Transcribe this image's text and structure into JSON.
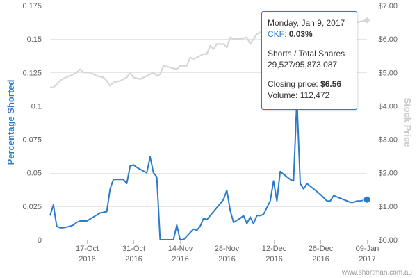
{
  "chart_data": {
    "type": "line",
    "x_axis": {
      "ticks": [
        {
          "date": "2016-10-17",
          "line1": "17-Oct",
          "line2": "2016"
        },
        {
          "date": "2016-10-31",
          "line1": "31-Oct",
          "line2": "2016"
        },
        {
          "date": "2016-11-14",
          "line1": "14-Nov",
          "line2": "2016"
        },
        {
          "date": "2016-11-28",
          "line1": "28-Nov",
          "line2": "2016"
        },
        {
          "date": "2016-12-12",
          "line1": "12-Dec",
          "line2": "2016"
        },
        {
          "date": "2016-12-26",
          "line1": "26-Dec",
          "line2": "2016"
        },
        {
          "date": "2017-01-09",
          "line1": "09-Jan",
          "line2": "2017"
        }
      ],
      "range": [
        "2016-10-06",
        "2017-01-09"
      ]
    },
    "y_axis_left": {
      "title": "Percentage Shorted",
      "range": [
        0,
        0.175
      ],
      "ticks": [
        {
          "value": 0,
          "label": "0"
        },
        {
          "value": 0.025,
          "label": "0.025"
        },
        {
          "value": 0.05,
          "label": "0.05"
        },
        {
          "value": 0.075,
          "label": "0.075"
        },
        {
          "value": 0.1,
          "label": "0.1"
        },
        {
          "value": 0.125,
          "label": "0.125"
        },
        {
          "value": 0.15,
          "label": "0.15"
        },
        {
          "value": 0.175,
          "label": "0.175"
        }
      ]
    },
    "y_axis_right": {
      "title": "Stock Price",
      "range": [
        0,
        7
      ],
      "ticks": [
        {
          "value": 0,
          "label": "$0.00"
        },
        {
          "value": 1,
          "label": "$1.00"
        },
        {
          "value": 2,
          "label": "$2.00"
        },
        {
          "value": 3,
          "label": "$3.00"
        },
        {
          "value": 4,
          "label": "$4.00"
        },
        {
          "value": 5,
          "label": "$5.00"
        },
        {
          "value": 6,
          "label": "$6.00"
        },
        {
          "value": 7,
          "label": "$7.00"
        }
      ]
    },
    "grid": true,
    "series": [
      {
        "axis": "left",
        "color": "#2b7bcb",
        "points": [
          [
            "2016-10-06",
            0.018
          ],
          [
            "2016-10-07",
            0.026
          ],
          [
            "2016-10-08",
            0.01
          ],
          [
            "2016-10-09",
            0.009
          ],
          [
            "2016-10-10",
            0.009
          ],
          [
            "2016-10-11",
            0.0095
          ],
          [
            "2016-10-12",
            0.01
          ],
          [
            "2016-10-13",
            0.011
          ],
          [
            "2016-10-14",
            0.013
          ],
          [
            "2016-10-15",
            0.014
          ],
          [
            "2016-10-16",
            0.014
          ],
          [
            "2016-10-17",
            0.014
          ],
          [
            "2016-10-19",
            0.017
          ],
          [
            "2016-10-21",
            0.02
          ],
          [
            "2016-10-23",
            0.021
          ],
          [
            "2016-10-24",
            0.038
          ],
          [
            "2016-10-25",
            0.045
          ],
          [
            "2016-10-28",
            0.045
          ],
          [
            "2016-10-29",
            0.042
          ],
          [
            "2016-10-30",
            0.055
          ],
          [
            "2016-10-31",
            0.056
          ],
          [
            "2016-11-01",
            0.054
          ],
          [
            "2016-11-04",
            0.05
          ],
          [
            "2016-11-05",
            0.062
          ],
          [
            "2016-11-06",
            0.05
          ],
          [
            "2016-11-07",
            0.047
          ],
          [
            "2016-11-08",
            0.0
          ],
          [
            "2016-11-10",
            0.0
          ],
          [
            "2016-11-12",
            0.0
          ],
          [
            "2016-11-13",
            0.011
          ],
          [
            "2016-11-14",
            0.0
          ],
          [
            "2016-11-15",
            0.0
          ],
          [
            "2016-11-18",
            0.008
          ],
          [
            "2016-11-19",
            0.007
          ],
          [
            "2016-11-20",
            0.01
          ],
          [
            "2016-11-21",
            0.016
          ],
          [
            "2016-11-22",
            0.015
          ],
          [
            "2016-11-27",
            0.03
          ],
          [
            "2016-11-28",
            0.037
          ],
          [
            "2016-11-29",
            0.022
          ],
          [
            "2016-11-30",
            0.013
          ],
          [
            "2016-12-02",
            0.016
          ],
          [
            "2016-12-03",
            0.018
          ],
          [
            "2016-12-04",
            0.012
          ],
          [
            "2016-12-05",
            0.017
          ],
          [
            "2016-12-06",
            0.012
          ],
          [
            "2016-12-07",
            0.018
          ],
          [
            "2016-12-08",
            0.018
          ],
          [
            "2016-12-09",
            0.019
          ],
          [
            "2016-12-11",
            0.029
          ],
          [
            "2016-12-12",
            0.044
          ],
          [
            "2016-12-13",
            0.029
          ],
          [
            "2016-12-14",
            0.051
          ],
          [
            "2016-12-17",
            0.045
          ],
          [
            "2016-12-18",
            0.044
          ],
          [
            "2016-12-19",
            0.105
          ],
          [
            "2016-12-20",
            0.042
          ],
          [
            "2016-12-21",
            0.038
          ],
          [
            "2016-12-22",
            0.042
          ],
          [
            "2016-12-26",
            0.034
          ],
          [
            "2016-12-28",
            0.029
          ],
          [
            "2016-12-29",
            0.029
          ],
          [
            "2016-12-30",
            0.033
          ],
          [
            "2017-01-02",
            0.03
          ],
          [
            "2017-01-04",
            0.028
          ],
          [
            "2017-01-05",
            0.028
          ],
          [
            "2017-01-06",
            0.029
          ],
          [
            "2017-01-07",
            0.029
          ],
          [
            "2017-01-09",
            0.03
          ]
        ]
      },
      {
        "axis": "right",
        "color": "#d6d6d6",
        "points": [
          [
            "2016-10-06",
            4.55
          ],
          [
            "2016-10-07",
            4.55
          ],
          [
            "2016-10-08",
            4.65
          ],
          [
            "2016-10-09",
            4.75
          ],
          [
            "2016-10-10",
            4.82
          ],
          [
            "2016-10-12",
            4.9
          ],
          [
            "2016-10-14",
            5.0
          ],
          [
            "2016-10-15",
            5.1
          ],
          [
            "2016-10-16",
            5.0
          ],
          [
            "2016-10-18",
            5.0
          ],
          [
            "2016-10-20",
            4.9
          ],
          [
            "2016-10-22",
            4.85
          ],
          [
            "2016-10-23",
            4.75
          ],
          [
            "2016-10-24",
            4.6
          ],
          [
            "2016-10-25",
            4.7
          ],
          [
            "2016-10-27",
            4.75
          ],
          [
            "2016-10-29",
            4.85
          ],
          [
            "2016-10-30",
            5.0
          ],
          [
            "2016-10-31",
            4.85
          ],
          [
            "2016-11-02",
            4.8
          ],
          [
            "2016-11-04",
            4.9
          ],
          [
            "2016-11-06",
            5.0
          ],
          [
            "2016-11-07",
            4.9
          ],
          [
            "2016-11-08",
            4.95
          ],
          [
            "2016-11-09",
            5.2
          ],
          [
            "2016-11-11",
            5.15
          ],
          [
            "2016-11-13",
            5.1
          ],
          [
            "2016-11-14",
            5.2
          ],
          [
            "2016-11-16",
            5.2
          ],
          [
            "2016-11-17",
            5.45
          ],
          [
            "2016-11-18",
            5.4
          ],
          [
            "2016-11-20",
            5.5
          ],
          [
            "2016-11-21",
            5.55
          ],
          [
            "2016-11-22",
            5.55
          ],
          [
            "2016-11-23",
            5.8
          ],
          [
            "2016-11-24",
            5.7
          ],
          [
            "2016-11-25",
            5.85
          ],
          [
            "2016-11-27",
            5.85
          ],
          [
            "2016-11-28",
            5.75
          ],
          [
            "2016-11-29",
            6.05
          ],
          [
            "2016-11-30",
            6.0
          ],
          [
            "2016-12-02",
            6.0
          ],
          [
            "2016-12-04",
            6.05
          ],
          [
            "2016-12-05",
            5.85
          ],
          [
            "2016-12-06",
            6.0
          ],
          [
            "2016-12-07",
            6.15
          ],
          [
            "2016-12-08",
            6.2
          ],
          [
            "2016-12-10",
            6.3
          ],
          [
            "2016-12-12",
            6.35
          ],
          [
            "2016-12-14",
            6.3
          ],
          [
            "2016-12-16",
            6.25
          ],
          [
            "2016-12-18",
            6.3
          ],
          [
            "2016-12-20",
            6.4
          ],
          [
            "2016-12-22",
            6.35
          ],
          [
            "2016-12-24",
            6.4
          ],
          [
            "2016-12-26",
            6.45
          ],
          [
            "2016-12-28",
            6.45
          ],
          [
            "2016-12-30",
            6.5
          ],
          [
            "2017-01-02",
            6.45
          ],
          [
            "2017-01-04",
            6.5
          ],
          [
            "2017-01-06",
            6.5
          ],
          [
            "2017-01-09",
            6.56
          ]
        ]
      }
    ],
    "highlight": {
      "date": "2017-01-09",
      "left_value": 0.03,
      "right_value": 6.56
    }
  },
  "tooltip": {
    "date": "Monday, Jan 9, 2017",
    "ticker": "CKF:",
    "percent": "0.03%",
    "shorts_label": "Shorts / Total Shares",
    "shorts_value": "29,527/95,873,087",
    "closing_label": "Closing price:",
    "closing_value": "$6.56",
    "volume": "Volume: 112,472"
  },
  "credit": "www.shortman.com.au"
}
